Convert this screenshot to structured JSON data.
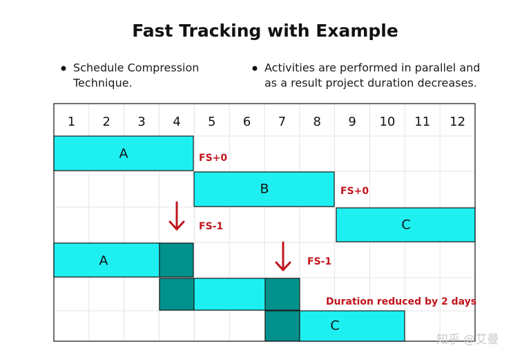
{
  "title": "Fast Tracking with Example",
  "bullets": [
    "Schedule Compression",
    "Technique.",
    "Activities are performed in parallel and",
    "as a result project duration decreases."
  ],
  "columns": [
    1,
    2,
    3,
    4,
    5,
    6,
    7,
    8,
    9,
    10,
    11,
    12
  ],
  "bars": [
    "A",
    "B",
    "C",
    "A",
    "C"
  ],
  "notes": [
    "FS+0",
    "FS+0",
    "FS-1",
    "FS-1",
    "Duration reduced by 2 days"
  ],
  "watermark": "知乎 @艾曼"
}
